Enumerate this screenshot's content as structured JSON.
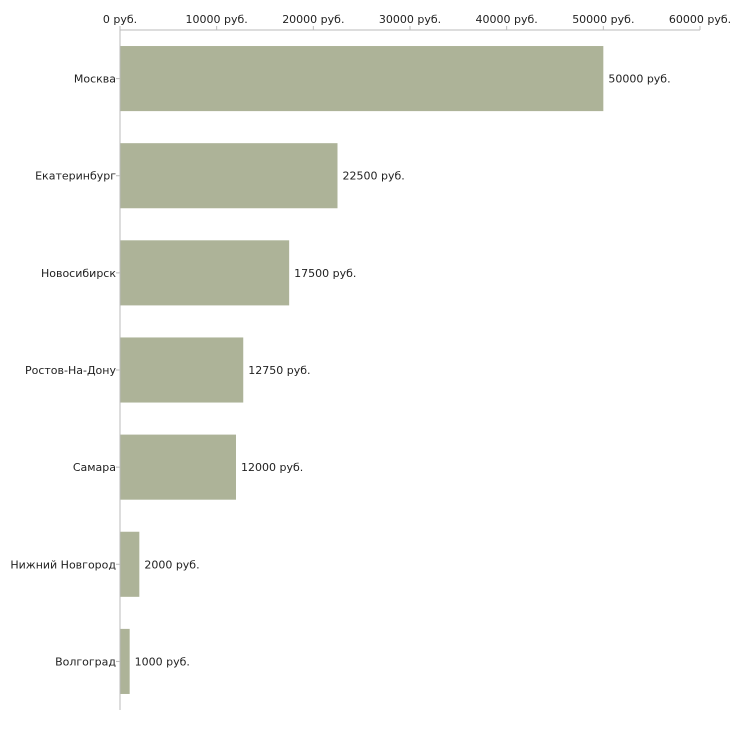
{
  "chart_data": {
    "type": "bar",
    "orientation": "horizontal",
    "title": "",
    "xlabel": "",
    "ylabel": "",
    "unit_suffix": " руб.",
    "xlim": [
      0,
      60000
    ],
    "ticks": [
      0,
      10000,
      20000,
      30000,
      40000,
      50000,
      60000
    ],
    "tick_labels": [
      "0 руб.",
      "10000 руб.",
      "20000 руб.",
      "30000 руб.",
      "40000 руб.",
      "50000 руб.",
      "60000 руб."
    ],
    "categories": [
      "Москва",
      "Екатеринбург",
      "Новосибирск",
      "Ростов-На-Дону",
      "Самара",
      "Нижний Новгород",
      "Волгоград"
    ],
    "values": [
      50000,
      22500,
      17500,
      12750,
      12000,
      2000,
      1000
    ],
    "value_labels": [
      "50000 руб.",
      "22500 руб.",
      "17500 руб.",
      "12750 руб.",
      "12000 руб.",
      "2000 руб.",
      "1000 руб."
    ],
    "bar_color": "#adb398",
    "axis_color": "#bbbbbb",
    "text_color": "#222222",
    "grid": false,
    "legend": "none"
  }
}
